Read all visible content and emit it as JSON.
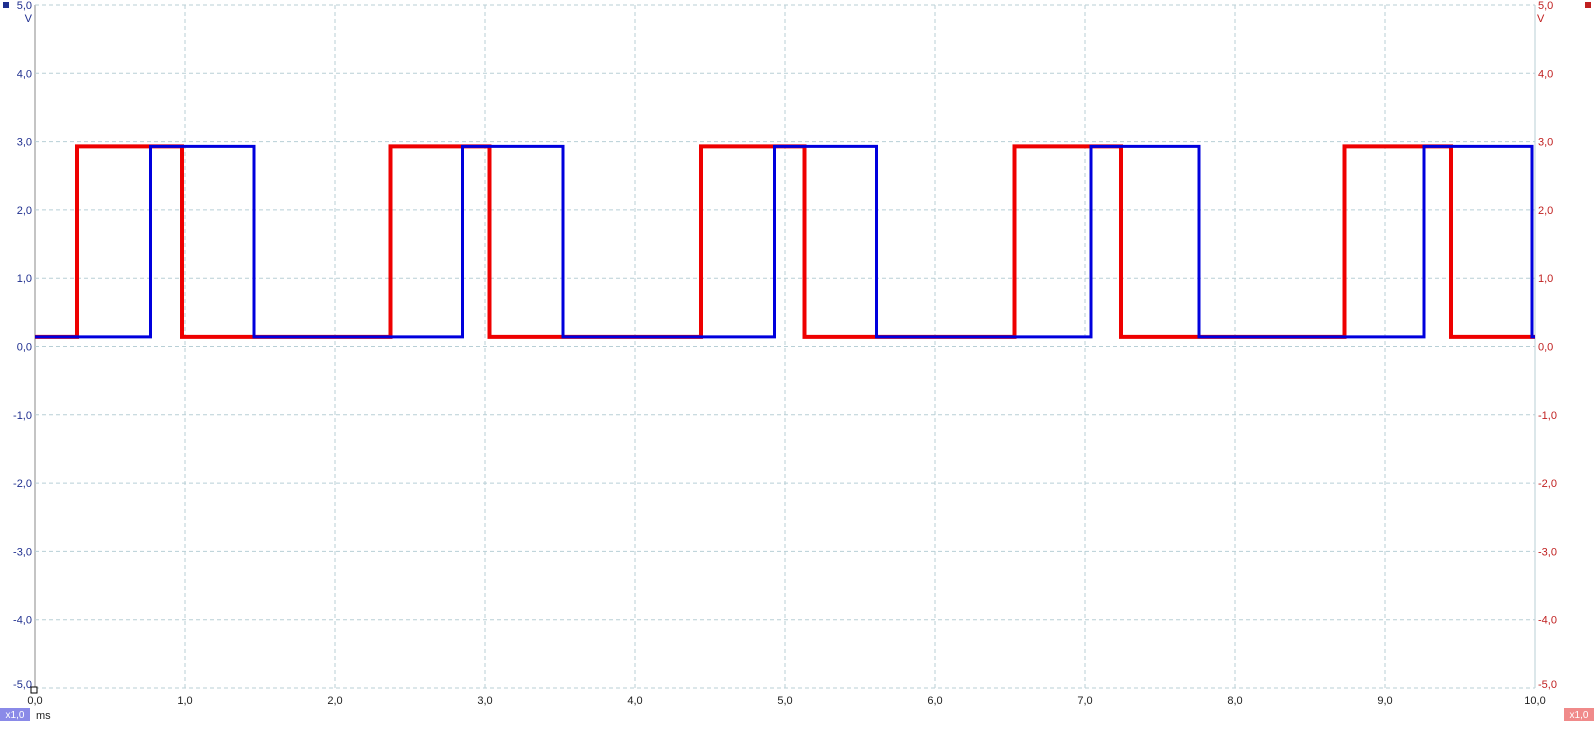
{
  "chart_data": {
    "type": "line",
    "xlabel": "",
    "x_unit": "ms",
    "xlim": [
      0,
      10
    ],
    "x_ticks": [
      "0,0",
      "1,0",
      "2,0",
      "3,0",
      "4,0",
      "5,0",
      "6,0",
      "7,0",
      "8,0",
      "9,0",
      "10,0"
    ],
    "y_unit": "V",
    "ylim": [
      -5,
      5
    ],
    "y_ticks": [
      "5,0",
      "4,0",
      "3,0",
      "2,0",
      "1,0",
      "0,0",
      "-1,0",
      "-2,0",
      "-3,0",
      "-4,0",
      "-5,0"
    ],
    "grid": true,
    "channel_a_scale": "x1,0",
    "channel_b_scale": "x1,0",
    "colors": {
      "channel_a": "#0000dd",
      "channel_b": "#ee0000",
      "grid": "#b8cfd6",
      "axis_a": "#1f2f8f",
      "axis_b": "#c02020"
    },
    "series": [
      {
        "low_v": 0.14,
        "high_v": 2.93,
        "high_intervals_ms": [
          [
            0.77,
            1.46
          ],
          [
            2.85,
            3.52
          ],
          [
            4.93,
            5.61
          ],
          [
            7.04,
            7.76
          ],
          [
            9.26,
            9.98
          ]
        ],
        "color": "#0000dd"
      },
      {
        "low_v": 0.14,
        "high_v": 2.93,
        "high_intervals_ms": [
          [
            0.28,
            0.98
          ],
          [
            2.37,
            3.03
          ],
          [
            4.44,
            5.13
          ],
          [
            6.53,
            7.24
          ],
          [
            8.73,
            9.44
          ]
        ],
        "color": "#ee0000"
      }
    ]
  }
}
